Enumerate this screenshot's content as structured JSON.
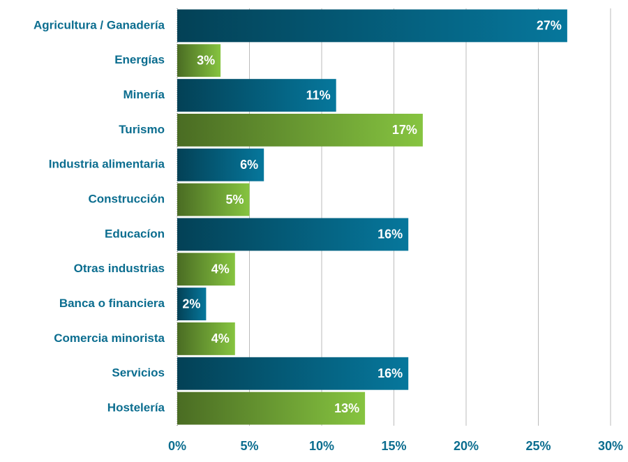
{
  "chart_data": {
    "type": "barh",
    "categories": [
      "Agricultura / Ganadería",
      "Energías",
      "Minería",
      "Turismo",
      "Industria alimentaria",
      "Construcción",
      "Educacíon",
      "Otras industrias",
      "Banca o financiera",
      "Comercia minorista",
      "Servicios",
      "Hostelería"
    ],
    "values": [
      27,
      3,
      11,
      17,
      6,
      5,
      16,
      4,
      2,
      4,
      16,
      13
    ],
    "value_labels": [
      "27%",
      "3%",
      "11%",
      "17%",
      "6%",
      "5%",
      "16%",
      "4%",
      "2%",
      "4%",
      "16%",
      "13%"
    ],
    "colors": [
      "#06779c",
      "#86c440",
      "#06779c",
      "#86c440",
      "#06779c",
      "#86c440",
      "#06779c",
      "#86c440",
      "#06779c",
      "#86c440",
      "#06779c",
      "#86c440"
    ],
    "xlim": [
      0,
      30
    ],
    "xticks": [
      {
        "value": 0,
        "label": "0%"
      },
      {
        "value": 5,
        "label": "5%"
      },
      {
        "value": 10,
        "label": "10%"
      },
      {
        "value": 15,
        "label": "15%"
      },
      {
        "value": 20,
        "label": "20%"
      },
      {
        "value": 25,
        "label": "25%"
      },
      {
        "value": 30,
        "label": "30%"
      }
    ],
    "grid": true
  }
}
